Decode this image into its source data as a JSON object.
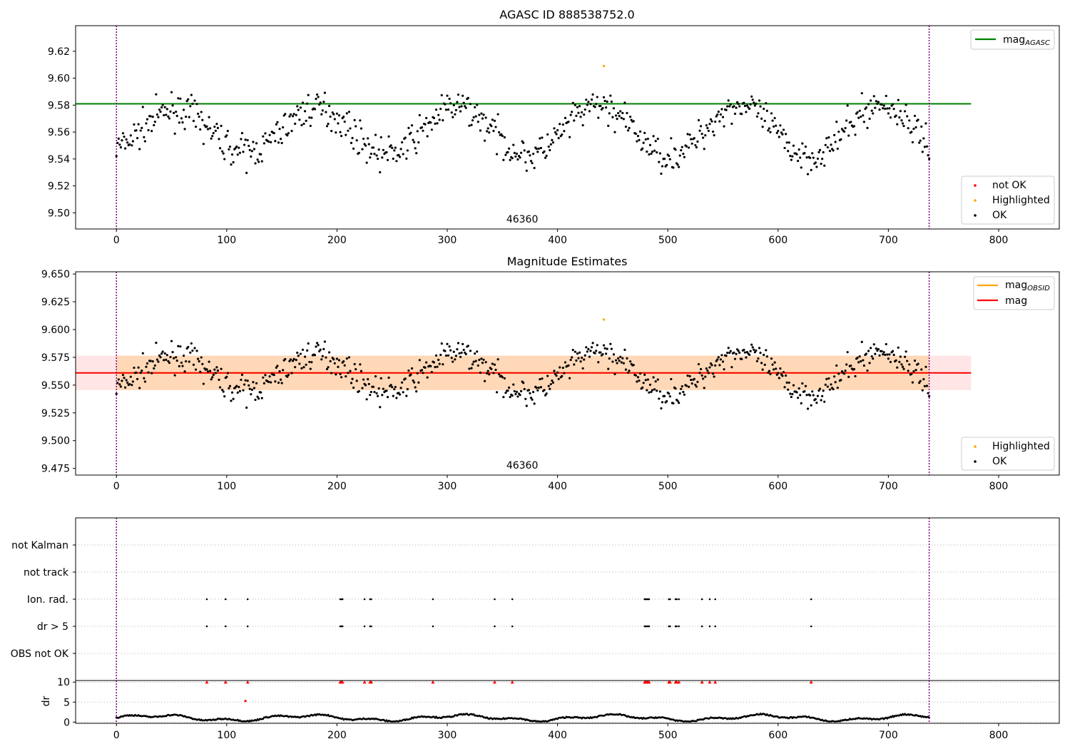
{
  "chart_data": [
    {
      "type": "scatter",
      "title": "AGASC ID 888538752.0",
      "xlabel": "",
      "ylabel": "",
      "xlim": [
        -37,
        855
      ],
      "ylim": [
        9.488,
        9.639
      ],
      "xticks": [
        0,
        100,
        200,
        300,
        400,
        500,
        600,
        700,
        800
      ],
      "yticks": [
        9.5,
        9.52,
        9.54,
        9.56,
        9.58,
        9.6,
        9.62
      ],
      "ytick_labels": [
        "9.50",
        "9.52",
        "9.54",
        "9.56",
        "9.58",
        "9.60",
        "9.62"
      ],
      "reference_lines": [
        {
          "name": "mag_AGASC",
          "y": 9.581,
          "x_range": [
            -37,
            775
          ],
          "color": "#008000"
        }
      ],
      "vertical_lines": [
        0,
        737
      ],
      "obsid_label": {
        "text": "46360",
        "x": 368
      },
      "highlighted": [
        {
          "x": 442,
          "y": 9.609
        }
      ],
      "legend_top": [
        {
          "label": "mag",
          "sub": "AGASC",
          "color": "#008000"
        }
      ],
      "legend_bottom": [
        {
          "label": "not OK",
          "color": "#ff0000"
        },
        {
          "label": "Highlighted",
          "color": "#ffa500"
        },
        {
          "label": "OK",
          "color": "#000000"
        }
      ],
      "grid": false
    },
    {
      "type": "scatter",
      "title": "Magnitude Estimates",
      "xlabel": "",
      "ylabel": "",
      "xlim": [
        -37,
        855
      ],
      "ylim": [
        9.469,
        9.652
      ],
      "xticks": [
        0,
        100,
        200,
        300,
        400,
        500,
        600,
        700,
        800
      ],
      "yticks": [
        9.475,
        9.5,
        9.525,
        9.55,
        9.575,
        9.6,
        9.625,
        9.65
      ],
      "ytick_labels": [
        "9.475",
        "9.500",
        "9.525",
        "9.550",
        "9.575",
        "9.600",
        "9.625",
        "9.650"
      ],
      "mag_obsid": 9.561,
      "mag": 9.561,
      "band": [
        9.5455,
        9.5765
      ],
      "band_x_range": [
        -37,
        775
      ],
      "vertical_lines": [
        0,
        737
      ],
      "obsid_label": {
        "text": "46360",
        "x": 368
      },
      "highlighted": [
        {
          "x": 442,
          "y": 9.609
        }
      ],
      "legend_top": [
        {
          "label": "mag",
          "sub": "OBSID",
          "color": "#ffa500"
        },
        {
          "label": "mag",
          "sub": "",
          "color": "#ff0000"
        }
      ],
      "legend_bottom": [
        {
          "label": "Highlighted",
          "color": "#ffa500"
        },
        {
          "label": "OK",
          "color": "#000000"
        }
      ],
      "grid": false
    },
    {
      "type": "scatter",
      "title": "",
      "xlabel": "",
      "ylabel": "",
      "xlim": [
        -37,
        855
      ],
      "categories": [
        "not Kalman",
        "not track",
        "Ion. rad.",
        "dr > 5",
        "OBS not OK"
      ],
      "flags": {
        "Ion. rad.": [
          82,
          99,
          119,
          203,
          204,
          205,
          225,
          230,
          231,
          287,
          343,
          359,
          479,
          480,
          481,
          482,
          483,
          501,
          502,
          507,
          508,
          510,
          531,
          538,
          543,
          630
        ],
        "dr > 5": [
          82,
          99,
          119,
          203,
          204,
          205,
          225,
          230,
          231,
          287,
          343,
          359,
          479,
          480,
          481,
          482,
          483,
          501,
          502,
          507,
          508,
          510,
          531,
          538,
          543,
          630
        ]
      },
      "vertical_lines": [
        0,
        737
      ],
      "grid": true
    },
    {
      "type": "scatter",
      "title": "",
      "xlabel": "",
      "ylabel": "dr",
      "xlim": [
        -37,
        855
      ],
      "ylim": [
        -0.3,
        10.4
      ],
      "xticks": [
        0,
        100,
        200,
        300,
        400,
        500,
        600,
        700,
        800
      ],
      "yticks": [
        0,
        5,
        10
      ],
      "ytick_labels": [
        "0",
        "5",
        "10"
      ],
      "clipped_high": [
        82,
        99,
        119,
        203,
        204,
        205,
        225,
        230,
        231,
        287,
        343,
        359,
        479,
        480,
        481,
        482,
        483,
        501,
        502,
        507,
        508,
        510,
        531,
        538,
        543,
        630
      ],
      "outliers": [
        {
          "x": 117,
          "y": 5.3
        }
      ],
      "vertical_lines": [
        0,
        737
      ],
      "grid": true
    }
  ]
}
